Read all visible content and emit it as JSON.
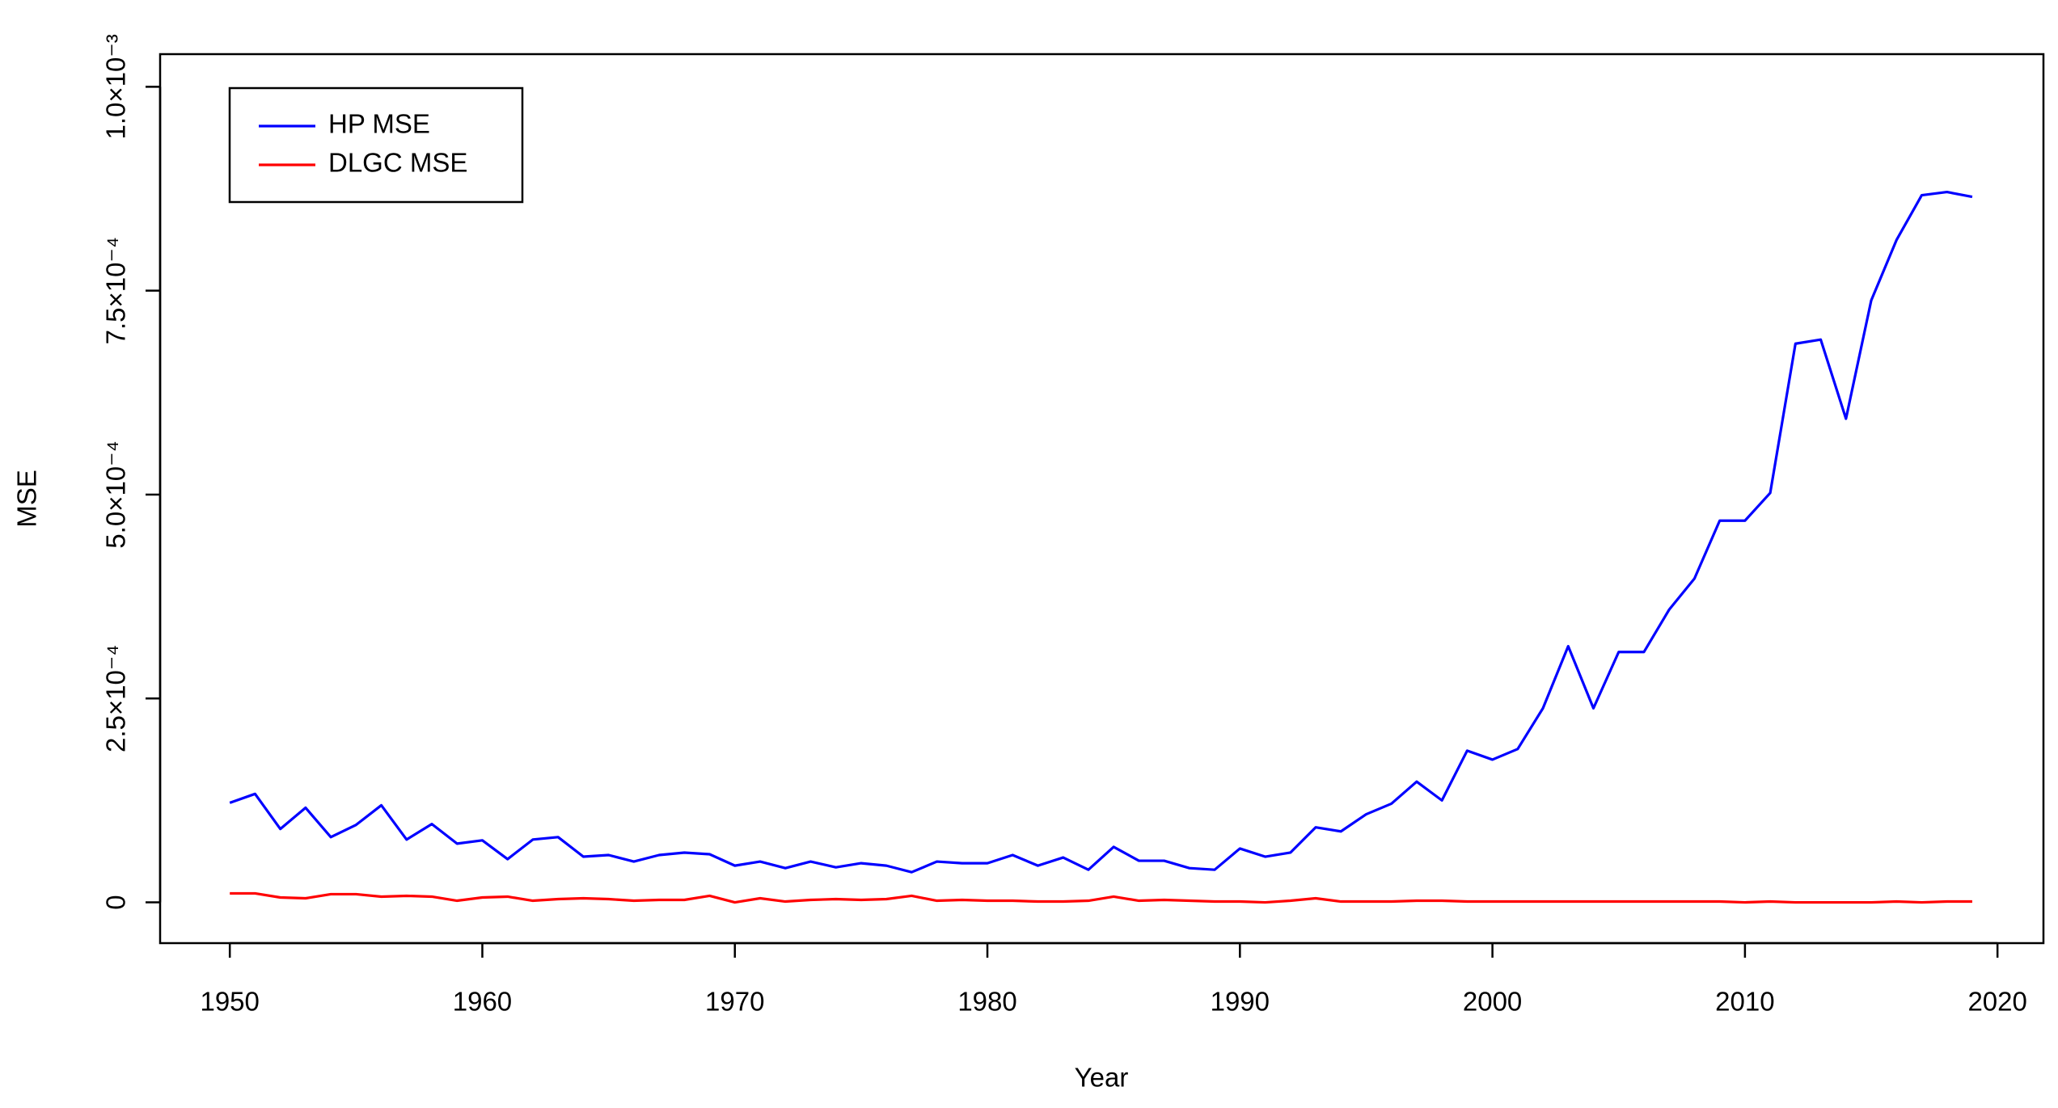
{
  "chart_data": {
    "type": "line",
    "x_label": "Year",
    "y_label": "MSE",
    "x": [
      1950,
      1951,
      1952,
      1953,
      1954,
      1955,
      1956,
      1957,
      1958,
      1959,
      1960,
      1961,
      1962,
      1963,
      1964,
      1965,
      1966,
      1967,
      1968,
      1969,
      1970,
      1971,
      1972,
      1973,
      1974,
      1975,
      1976,
      1977,
      1978,
      1979,
      1980,
      1981,
      1982,
      1983,
      1984,
      1985,
      1986,
      1987,
      1988,
      1989,
      1990,
      1991,
      1992,
      1993,
      1994,
      1995,
      1996,
      1997,
      1998,
      1999,
      2000,
      2001,
      2002,
      2003,
      2004,
      2005,
      2006,
      2007,
      2008,
      2009,
      2010,
      2011,
      2012,
      2013,
      2014,
      2015,
      2016,
      2017,
      2018,
      2019
    ],
    "series": [
      {
        "name": "HP MSE",
        "color": "#0000ff",
        "values": [
          0.000122,
          0.000133,
          9e-05,
          0.000116,
          8e-05,
          9.5e-05,
          0.000119,
          7.7e-05,
          9.6e-05,
          7.2e-05,
          7.6e-05,
          5.3e-05,
          7.7e-05,
          8e-05,
          5.6e-05,
          5.8e-05,
          5e-05,
          5.8e-05,
          6.1e-05,
          5.9e-05,
          4.5e-05,
          5e-05,
          4.2e-05,
          5e-05,
          4.3e-05,
          4.8e-05,
          4.5e-05,
          3.7e-05,
          5e-05,
          4.8e-05,
          4.8e-05,
          5.8e-05,
          4.5e-05,
          5.5e-05,
          4e-05,
          6.8e-05,
          5.1e-05,
          5.1e-05,
          4.2e-05,
          4e-05,
          6.6e-05,
          5.6e-05,
          6.1e-05,
          9.2e-05,
          8.7e-05,
          0.000108,
          0.000121,
          0.000148,
          0.000125,
          0.000186,
          0.000175,
          0.000188,
          0.000238,
          0.000314,
          0.000238,
          0.000307,
          0.000307,
          0.000359,
          0.000397,
          0.000468,
          0.000468,
          0.000502,
          0.000685,
          0.00069,
          0.000593,
          0.000738,
          0.000812,
          0.000867,
          0.000871,
          0.000865
        ]
      },
      {
        "name": "DLGC MSE",
        "color": "#ff0000",
        "values": [
          1.1e-05,
          1.1e-05,
          6e-06,
          5e-06,
          1e-05,
          1e-05,
          7e-06,
          8e-06,
          7e-06,
          2e-06,
          6e-06,
          7e-06,
          2e-06,
          4e-06,
          5e-06,
          4e-06,
          2e-06,
          3e-06,
          3e-06,
          8e-06,
          0,
          5e-06,
          1e-06,
          3e-06,
          4e-06,
          3e-06,
          4e-06,
          8e-06,
          2e-06,
          3e-06,
          2e-06,
          2e-06,
          1e-06,
          1e-06,
          2e-06,
          7e-06,
          2e-06,
          3e-06,
          2e-06,
          1e-06,
          1e-06,
          0,
          2e-06,
          5e-06,
          1e-06,
          1e-06,
          1e-06,
          2e-06,
          2e-06,
          1e-06,
          1e-06,
          1e-06,
          1e-06,
          1e-06,
          1e-06,
          1e-06,
          1e-06,
          1e-06,
          1e-06,
          1e-06,
          0,
          1e-06,
          0,
          0,
          0,
          0,
          1e-06,
          0,
          1e-06,
          1e-06
        ]
      }
    ],
    "xlim": [
      1947.24,
      2021.82
    ],
    "xticks": [
      1950,
      1960,
      1970,
      1980,
      1990,
      2000,
      2010,
      2020
    ],
    "ylim": [
      -5e-05,
      0.00104
    ],
    "yticks": [
      0,
      {
        "value": 0.00025,
        "label": "2.5×10⁻⁴"
      },
      {
        "value": 0.0005,
        "label": "5.0×10⁻⁴"
      },
      {
        "value": 0.00075,
        "label": "7.5×10⁻⁴"
      },
      {
        "value": 0.001,
        "label": "1.0×10⁻³"
      }
    ],
    "legend": "topleft",
    "grid": false
  }
}
